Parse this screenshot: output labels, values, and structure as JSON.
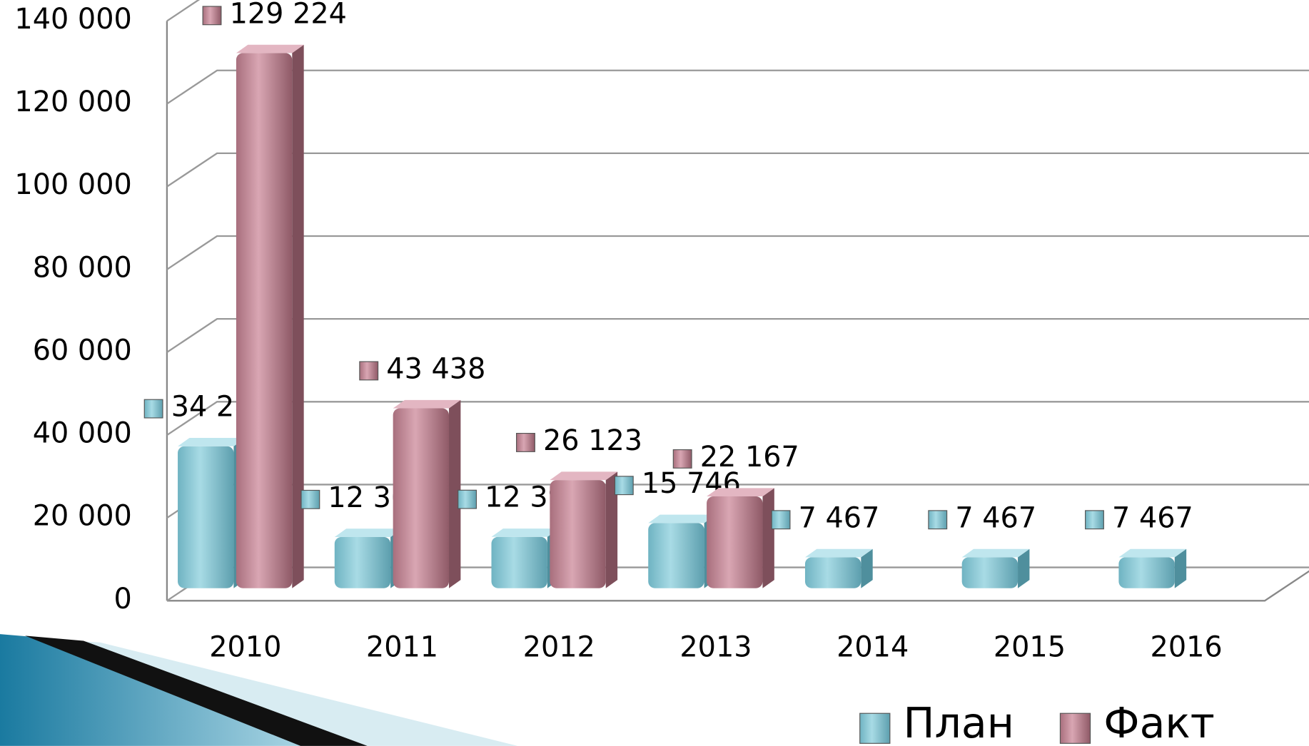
{
  "chart_data": {
    "type": "bar3d",
    "categories": [
      "2010",
      "2011",
      "2012",
      "2013",
      "2014",
      "2015",
      "2016"
    ],
    "series": [
      {
        "name": "План",
        "color": "#8fcad6",
        "values": [
          34281,
          12364,
          12396,
          15746,
          7467,
          7467,
          7467
        ],
        "value_labels": [
          "34 281",
          "12 364",
          "12 396",
          "15 746",
          "7 467",
          "7 467",
          "7 467"
        ]
      },
      {
        "name": "Факт",
        "color": "#c98e9c",
        "values": [
          129224,
          43438,
          26123,
          22167,
          null,
          null,
          null
        ],
        "value_labels": [
          "129 224",
          "43 438",
          "26 123",
          "22 167",
          null,
          null,
          null
        ]
      }
    ],
    "ylim": [
      0,
      140000
    ],
    "yticks": [
      0,
      {
        "value": 20000,
        "label": "20 000"
      },
      {
        "value": 40000,
        "label": "40 000"
      },
      {
        "value": 60000,
        "label": "60 000"
      },
      {
        "value": 80000,
        "label": "80 000"
      },
      {
        "value": 100000,
        "label": "100 000"
      },
      {
        "value": 120000,
        "label": "120 000"
      },
      {
        "value": 140000,
        "label": "140 000"
      }
    ],
    "grid": true,
    "legend": "bottom-right"
  }
}
